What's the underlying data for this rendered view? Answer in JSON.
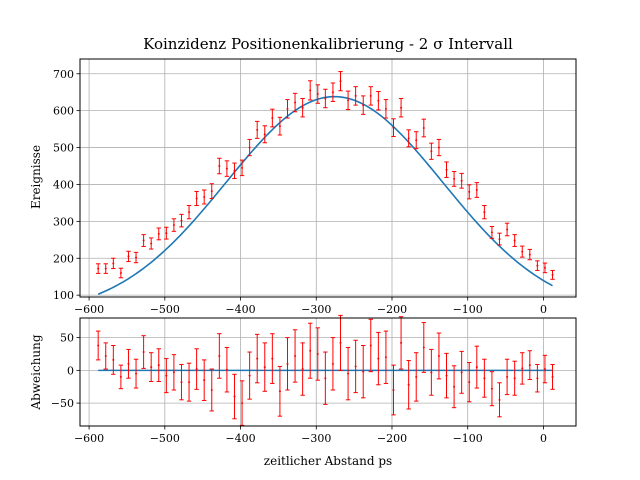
{
  "chart_data": [
    {
      "type": "scatter",
      "title": "Koinzidenz Positionenkalibrierung - 2 σ Intervall",
      "xlabel": "",
      "ylabel": "Ereignisse",
      "xlim": [
        -612,
        43
      ],
      "ylim": [
        95,
        740
      ],
      "xticks": [
        -600,
        -500,
        -400,
        -300,
        -200,
        -100,
        0
      ],
      "xtick_labels": [
        "−600",
        "−500",
        "−400",
        "−300",
        "−200",
        "−100",
        "0"
      ],
      "yticks": [
        100,
        200,
        300,
        400,
        500,
        600,
        700
      ],
      "ytick_labels": [
        "100",
        "200",
        "300",
        "400",
        "500",
        "600",
        "700"
      ],
      "grid": true,
      "legend": "none",
      "colors": {
        "points": "#ff0000",
        "fit": "#1f77b4",
        "grid": "#b0b0b0"
      },
      "fit_model": {
        "amplitude": 590,
        "center": -276,
        "sigma": 143,
        "offset": 48
      },
      "series": [
        {
          "marker": "errorbar",
          "x": [
            -588,
            -578,
            -568,
            -558,
            -548,
            -538,
            -528,
            -518,
            -508,
            -498,
            -488,
            -478,
            -468,
            -458,
            -448,
            -438,
            -428,
            -418,
            -408,
            -398,
            -388,
            -378,
            -368,
            -358,
            -348,
            -338,
            -328,
            -318,
            -308,
            -298,
            -288,
            -278,
            -268,
            -258,
            -248,
            -238,
            -228,
            -218,
            -208,
            -198,
            -188,
            -178,
            -168,
            -158,
            -148,
            -138,
            -128,
            -118,
            -108,
            -98,
            -88,
            -78,
            -68,
            -58,
            -48,
            -38,
            -28,
            -18,
            -8,
            2,
            12
          ],
          "y": [
            172,
            172,
            186,
            160,
            205,
            202,
            248,
            240,
            266,
            268,
            290,
            302,
            325,
            362,
            366,
            382,
            450,
            443,
            437,
            445,
            500,
            548,
            536,
            580,
            558,
            605,
            622,
            608,
            655,
            645,
            633,
            650,
            680,
            628,
            640,
            615,
            640,
            627,
            605,
            554,
            608,
            525,
            520,
            553,
            490,
            500,
            440,
            415,
            410,
            380,
            385,
            325,
            270,
            252,
            278,
            248,
            218,
            210,
            180,
            174,
            155
          ],
          "yerr": [
            13,
            13,
            14,
            13,
            14,
            14,
            16,
            15,
            16,
            16,
            17,
            17,
            18,
            19,
            19,
            20,
            21,
            21,
            21,
            21,
            22,
            23,
            23,
            24,
            24,
            25,
            25,
            25,
            26,
            25,
            25,
            25,
            26,
            25,
            25,
            25,
            25,
            25,
            25,
            24,
            25,
            23,
            23,
            24,
            22,
            22,
            21,
            20,
            20,
            19,
            20,
            18,
            16,
            16,
            17,
            16,
            15,
            14,
            13,
            13,
            12
          ]
        }
      ]
    },
    {
      "type": "scatter",
      "title": "",
      "xlabel": "zeitlicher Abstand ps",
      "ylabel": "Abweichung",
      "xlim": [
        -612,
        43
      ],
      "ylim": [
        -85,
        80
      ],
      "xticks": [
        -600,
        -500,
        -400,
        -300,
        -200,
        -100,
        0
      ],
      "xtick_labels": [
        "−600",
        "−500",
        "−400",
        "−300",
        "−200",
        "−100",
        "0"
      ],
      "yticks": [
        -50,
        0,
        50
      ],
      "ytick_labels": [
        "−50",
        "0",
        "50"
      ],
      "grid": true,
      "legend": "none",
      "colors": {
        "points": "#ff0000",
        "zero_line": "#1f77b4",
        "grid": "#b0b0b0"
      },
      "zero_line": {
        "x": [
          -588,
          12
        ],
        "y": 0
      },
      "series": [
        {
          "marker": "errorbar",
          "x": [
            -588,
            -578,
            -568,
            -558,
            -548,
            -538,
            -528,
            -518,
            -508,
            -498,
            -488,
            -478,
            -468,
            -458,
            -448,
            -438,
            -428,
            -418,
            -408,
            -398,
            -388,
            -378,
            -368,
            -358,
            -348,
            -338,
            -328,
            -318,
            -308,
            -298,
            -288,
            -278,
            -268,
            -258,
            -248,
            -238,
            -228,
            -218,
            -208,
            -198,
            -188,
            -178,
            -168,
            -158,
            -148,
            -138,
            -128,
            -118,
            -108,
            -98,
            -88,
            -78,
            -68,
            -58,
            -48,
            -38,
            -28,
            -18,
            -8,
            2,
            12
          ],
          "y": [
            38,
            22,
            16,
            -10,
            10,
            -5,
            28,
            5,
            8,
            -8,
            -3,
            -18,
            -18,
            2,
            -15,
            -30,
            22,
            1,
            -40,
            -50,
            -8,
            18,
            5,
            18,
            -32,
            10,
            22,
            2,
            30,
            25,
            -12,
            10,
            42,
            -5,
            6,
            -2,
            38,
            18,
            20,
            -30,
            42,
            -22,
            -10,
            35,
            -3,
            22,
            -8,
            -25,
            -3,
            -18,
            5,
            -12,
            -28,
            -45,
            -10,
            -12,
            3,
            8,
            -12,
            2,
            -10
          ],
          "yerr": [
            22,
            20,
            22,
            18,
            22,
            22,
            25,
            22,
            25,
            26,
            27,
            27,
            29,
            31,
            31,
            32,
            34,
            34,
            34,
            34,
            36,
            37,
            37,
            38,
            38,
            40,
            40,
            40,
            42,
            40,
            40,
            40,
            42,
            40,
            40,
            40,
            40,
            40,
            40,
            38,
            40,
            37,
            37,
            38,
            35,
            35,
            34,
            32,
            32,
            30,
            32,
            29,
            26,
            26,
            27,
            26,
            24,
            22,
            21,
            21,
            19
          ]
        }
      ]
    }
  ]
}
